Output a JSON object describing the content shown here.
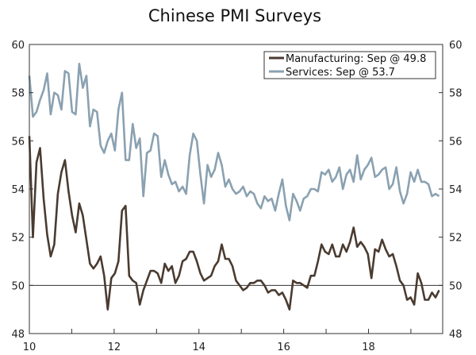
{
  "chart_data": {
    "type": "line",
    "title": "Chinese PMI Surveys",
    "xlabel": "",
    "ylabel": "",
    "xlim": [
      2010.0,
      2019.75
    ],
    "ylim": [
      48,
      60
    ],
    "x_ticks": [
      2010,
      2012,
      2014,
      2016,
      2018
    ],
    "x_tick_labels": [
      "10",
      "12",
      "14",
      "16",
      "18"
    ],
    "y_ticks": [
      48,
      50,
      52,
      54,
      56,
      58,
      60
    ],
    "y_tick_labels": [
      "48",
      "50",
      "52",
      "54",
      "56",
      "58",
      "60"
    ],
    "reference_line": 50,
    "legend_position": "top-right",
    "series": [
      {
        "name": "Manufacturing: Sep @ 49.8",
        "color": "#4a3b30",
        "values": [
          56.2,
          52.0,
          55.1,
          55.7,
          53.6,
          52.1,
          51.2,
          51.7,
          53.8,
          54.7,
          55.2,
          53.9,
          52.9,
          52.2,
          53.4,
          52.9,
          51.9,
          50.9,
          50.7,
          50.9,
          51.2,
          50.4,
          49.0,
          50.3,
          50.5,
          51.0,
          53.1,
          53.3,
          50.4,
          50.2,
          50.1,
          49.2,
          49.8,
          50.2,
          50.6,
          50.6,
          50.5,
          50.1,
          50.9,
          50.6,
          50.8,
          50.1,
          50.4,
          51.0,
          51.1,
          51.4,
          51.4,
          51.0,
          50.5,
          50.2,
          50.3,
          50.4,
          50.8,
          51.0,
          51.7,
          51.1,
          51.1,
          50.8,
          50.2,
          50.0,
          49.8,
          49.9,
          50.1,
          50.1,
          50.2,
          50.2,
          50.0,
          49.7,
          49.8,
          49.8,
          49.6,
          49.7,
          49.4,
          49.0,
          50.2,
          50.1,
          50.1,
          50.0,
          49.9,
          50.4,
          50.4,
          51.0,
          51.7,
          51.4,
          51.3,
          51.7,
          51.2,
          51.2,
          51.7,
          51.4,
          51.8,
          52.4,
          51.6,
          51.8,
          51.6,
          51.3,
          50.3,
          51.5,
          51.4,
          51.9,
          51.5,
          51.2,
          51.3,
          50.8,
          50.2,
          50.0,
          49.4,
          49.5,
          49.2,
          50.5,
          50.1,
          49.4,
          49.4,
          49.7,
          49.5,
          49.8
        ]
      },
      {
        "name": "Services: Sep @ 53.7",
        "color": "#8aa1b1",
        "values": [
          58.7,
          57.0,
          57.2,
          57.7,
          58.1,
          58.8,
          57.1,
          58.0,
          57.9,
          57.3,
          58.9,
          58.8,
          57.2,
          57.1,
          59.2,
          58.2,
          58.7,
          56.6,
          57.3,
          57.2,
          55.8,
          55.5,
          56.0,
          56.3,
          55.6,
          57.3,
          58.0,
          55.2,
          55.2,
          56.7,
          55.7,
          56.1,
          53.7,
          55.5,
          55.6,
          56.3,
          56.2,
          54.5,
          55.2,
          54.6,
          54.2,
          54.3,
          53.9,
          54.1,
          53.8,
          55.4,
          56.3,
          56.0,
          54.6,
          53.4,
          55.0,
          54.5,
          54.8,
          55.5,
          55.0,
          54.1,
          54.4,
          54.0,
          53.8,
          53.9,
          54.1,
          53.7,
          53.9,
          53.8,
          53.4,
          53.2,
          53.7,
          53.5,
          53.6,
          53.1,
          53.8,
          54.4,
          53.3,
          52.7,
          53.8,
          53.5,
          53.1,
          53.6,
          53.7,
          54.0,
          54.0,
          53.9,
          54.7,
          54.6,
          54.8,
          54.3,
          54.5,
          54.9,
          54.0,
          54.6,
          54.8,
          54.3,
          55.4,
          54.4,
          54.8,
          55.0,
          55.3,
          54.5,
          54.6,
          54.8,
          54.9,
          54.0,
          54.2,
          54.9,
          53.9,
          53.4,
          53.8,
          54.7,
          54.3,
          54.8,
          54.3,
          54.3,
          54.2,
          53.7,
          53.8,
          53.7
        ]
      }
    ]
  }
}
